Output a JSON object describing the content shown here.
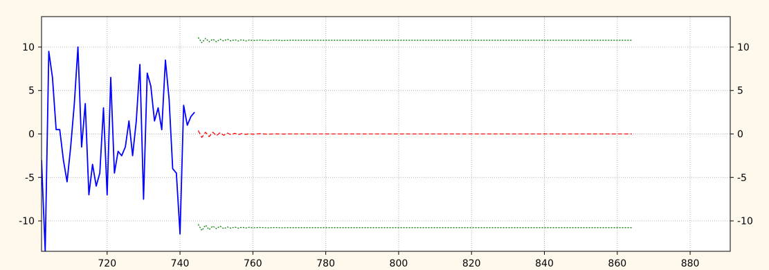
{
  "chart_data": {
    "type": "line",
    "title": "",
    "xlabel": "",
    "ylabel": "",
    "xlim": [
      702,
      891
    ],
    "ylim": [
      -13.5,
      13.5
    ],
    "x_ticks": [
      720,
      740,
      760,
      780,
      800,
      820,
      840,
      860,
      880
    ],
    "y_ticks": [
      10,
      5,
      0,
      -5,
      -10
    ],
    "grid": true,
    "legend": "none",
    "colors": {
      "background": "#fff8ec",
      "plot_background": "#ffffff",
      "grid": "#b0b0b0",
      "series": "#0000ff",
      "forecast": "#ff0000",
      "upper_band": "#008000",
      "lower_band": "#008000"
    },
    "series": [
      {
        "id": "observed",
        "style": "solid",
        "x": [
          702,
          703,
          704,
          705,
          706,
          707,
          708,
          709,
          710,
          711,
          712,
          713,
          714,
          715,
          716,
          717,
          718,
          719,
          720,
          721,
          722,
          723,
          724,
          725,
          726,
          727,
          728,
          729,
          730,
          731,
          732,
          733,
          734,
          735,
          736,
          737,
          738,
          739,
          740,
          741,
          742,
          743,
          744
        ],
        "values": [
          -3.0,
          -13.5,
          9.5,
          6.5,
          0.5,
          0.5,
          -3.0,
          -5.5,
          -1.5,
          3.5,
          10.0,
          -1.5,
          3.5,
          -7.0,
          -3.5,
          -6.0,
          -4.5,
          3.0,
          -7.0,
          6.5,
          -4.5,
          -2.0,
          -2.5,
          -1.5,
          1.5,
          -2.5,
          1.5,
          8.0,
          -7.5,
          7.0,
          5.5,
          1.5,
          3.0,
          0.5,
          8.5,
          4.0,
          -4.0,
          -4.5,
          -11.5,
          3.3,
          1.0,
          2.0,
          2.5
        ]
      },
      {
        "id": "forecast",
        "style": "dashed",
        "x": [
          745,
          746,
          747,
          748,
          749,
          750,
          751,
          752,
          753,
          754,
          755,
          756,
          757,
          758,
          759,
          760,
          762,
          764,
          766,
          768,
          770,
          780,
          800,
          820,
          840,
          864
        ],
        "values": [
          0.4,
          -0.4,
          0.2,
          -0.3,
          0.2,
          -0.2,
          0.15,
          -0.15,
          0.1,
          -0.1,
          0.08,
          -0.08,
          0.05,
          -0.05,
          0.03,
          -0.03,
          0.02,
          -0.02,
          0.01,
          -0.01,
          0.0,
          0.0,
          0.0,
          0.0,
          0.0,
          0.0
        ]
      },
      {
        "id": "upper-band",
        "style": "dotted",
        "x": [
          745,
          746,
          747,
          748,
          749,
          750,
          751,
          752,
          753,
          754,
          755,
          756,
          757,
          758,
          759,
          760,
          762,
          764,
          766,
          768,
          770,
          780,
          800,
          820,
          840,
          864
        ],
        "values": [
          11.1,
          10.5,
          11.0,
          10.6,
          10.9,
          10.6,
          10.9,
          10.7,
          10.9,
          10.7,
          10.85,
          10.7,
          10.85,
          10.7,
          10.8,
          10.75,
          10.8,
          10.75,
          10.8,
          10.75,
          10.78,
          10.78,
          10.78,
          10.78,
          10.78,
          10.78
        ]
      },
      {
        "id": "lower-band",
        "style": "dotted",
        "x": [
          745,
          746,
          747,
          748,
          749,
          750,
          751,
          752,
          753,
          754,
          755,
          756,
          757,
          758,
          759,
          760,
          762,
          764,
          766,
          768,
          770,
          780,
          800,
          820,
          840,
          864
        ],
        "values": [
          -10.4,
          -11.1,
          -10.5,
          -11.0,
          -10.6,
          -10.9,
          -10.6,
          -10.9,
          -10.7,
          -10.85,
          -10.7,
          -10.85,
          -10.72,
          -10.82,
          -10.74,
          -10.8,
          -10.75,
          -10.8,
          -10.76,
          -10.79,
          -10.78,
          -10.78,
          -10.78,
          -10.78,
          -10.78,
          -10.78
        ]
      }
    ]
  }
}
